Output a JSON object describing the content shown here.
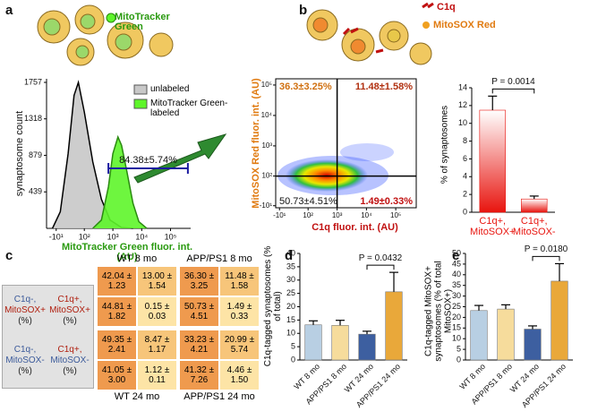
{
  "panels": [
    "a",
    "b",
    "c",
    "d",
    "e"
  ],
  "icon_labels": {
    "mitotracker": "MitoTracker Green",
    "c1q": "C1q",
    "mitosox": "MitoSOX Red"
  },
  "chart_data": [
    {
      "type": "area",
      "xlabel": "MitoTracker Green fluor. int. (AU)",
      "ylabel": "synaptosome count",
      "xscale": "biexponential",
      "series": [
        {
          "name": "unlabeled",
          "color": "#c8c8c8",
          "x": [
            -20,
            0,
            20,
            40,
            60,
            100,
            200,
            400,
            800,
            2000,
            5000
          ],
          "values": [
            0,
            200,
            900,
            1600,
            1757,
            1400,
            800,
            350,
            100,
            10,
            0
          ]
        },
        {
          "name": "MitoTracker Green-labeled",
          "color": "#5ef52a",
          "x": [
            200,
            400,
            700,
            1000,
            1500,
            2000,
            3000,
            5000,
            8000,
            15000
          ],
          "values": [
            0,
            100,
            500,
            900,
            1100,
            1000,
            700,
            300,
            80,
            0
          ]
        }
      ],
      "xlim": [
        -40,
        500000
      ],
      "xticks": [
        {
          "value": -10,
          "label": "-10¹"
        },
        {
          "value": 100,
          "label": "10²"
        },
        {
          "value": 1000,
          "label": "10³"
        },
        {
          "value": 10000,
          "label": "10⁴"
        },
        {
          "value": 100000,
          "label": "10⁵"
        }
      ],
      "ylim": [
        0,
        1800
      ],
      "yticks": [
        439,
        879,
        1318,
        1757
      ],
      "gate": [
        700,
        400000
      ],
      "annotation": "84.38±5.74%"
    },
    {
      "type": "density",
      "xlabel": "C1q fluor. int. (AU)",
      "ylabel": "MitoSOX Red fluor. int. (AU)",
      "xscale": "biexponential",
      "xlim": [
        -20,
        500000
      ],
      "ylim": [
        -15,
        160000
      ],
      "xticks": [
        {
          "value": -10,
          "label": "-10¹"
        },
        {
          "value": 100,
          "label": "10²"
        },
        {
          "value": 1000,
          "label": "10³"
        },
        {
          "value": 10000,
          "label": "10⁴"
        },
        {
          "value": 100000,
          "label": "10⁵"
        }
      ],
      "yticks": [
        {
          "value": -10,
          "label": "-10¹"
        },
        {
          "value": 100,
          "label": "10²"
        },
        {
          "value": 1000,
          "label": "10³"
        },
        {
          "value": 10000,
          "label": "10⁴"
        },
        {
          "value": 100000,
          "label": "10⁵"
        }
      ],
      "thresholds": {
        "x": 1000,
        "y": 100
      },
      "quadrant_labels": [
        "36.3±3.25%",
        "11.48±1.58%",
        "50.73±4.51%",
        "1.49±0.33%"
      ]
    },
    {
      "type": "bar",
      "ylabel": "% of synaptosomes",
      "categories": [
        "C1q+, MitoSOX+",
        "C1q+, MitoSOX-"
      ],
      "values": [
        11.48,
        1.49
      ],
      "errors": [
        1.58,
        0.33
      ],
      "color": "#e8150f",
      "ylim": [
        0,
        14
      ],
      "yticks": [
        0,
        2,
        4,
        6,
        8,
        10,
        12,
        14
      ],
      "annotation": "P = 0.0014"
    },
    {
      "type": "bar",
      "ylabel": "C1q-tagged synaptosomes (% of total)",
      "categories": [
        "WT 8 mo",
        "APP/PS1 8 mo",
        "WT 24 mo",
        "APP/PS1 24 mo"
      ],
      "values": [
        13.2,
        13.0,
        9.7,
        25.6
      ],
      "errors": [
        1.5,
        1.9,
        1.1,
        7.3
      ],
      "colors": [
        "#b8cfe3",
        "#f6dc9c",
        "#3d5fa0",
        "#e9a83a"
      ],
      "ylim": [
        0,
        40
      ],
      "yticks": [
        0,
        5,
        10,
        15,
        20,
        25,
        30,
        35,
        40
      ],
      "annotation": "P = 0.0432"
    },
    {
      "type": "bar",
      "ylabel": "C1q-tagged MitoSOX+ synaptosomes (% of total MitoSOX+)",
      "categories": [
        "WT 8 mo",
        "APP/PS1 8 mo",
        "WT 24 mo",
        "APP/PS1 24 mo"
      ],
      "values": [
        23.2,
        23.9,
        14.5,
        37.0
      ],
      "errors": [
        2.4,
        2.0,
        1.5,
        8.2
      ],
      "colors": [
        "#b8cfe3",
        "#f6dc9c",
        "#3d5fa0",
        "#e9a83a"
      ],
      "ylim": [
        0,
        50
      ],
      "yticks": [
        0,
        5,
        10,
        15,
        20,
        25,
        30,
        35,
        40,
        45,
        50
      ],
      "annotation": "P = 0.0180"
    }
  ],
  "table": {
    "row_labels": [
      [
        {
          "c1q": "C1q-,",
          "mitosox": "MitoSOX+",
          "unit": "(%)"
        },
        {
          "c1q": "C1q+,",
          "mitosox": "MitoSOX+",
          "unit": "(%)"
        }
      ],
      [
        {
          "c1q": "C1q-,",
          "mitosox": "MitoSOX-",
          "unit": "(%)"
        },
        {
          "c1q": "C1q+,",
          "mitosox": "MitoSOX-",
          "unit": "(%)"
        }
      ]
    ],
    "groups": [
      {
        "title": "WT 8 mo",
        "cells": [
          [
            "42.04 ± 1.23",
            "13.00 ± 1.54"
          ],
          [
            "44.81 ± 1.82",
            "0.15 ± 0.03"
          ]
        ]
      },
      {
        "title": "APP/PS1 8 mo",
        "cells": [
          [
            "36.30 ± 3.25",
            "11.48 ± 1.58"
          ],
          [
            "50.73 ± 4.51",
            "1.49 ± 0.33"
          ]
        ]
      },
      {
        "title": "WT 24 mo",
        "cells": [
          [
            "49.35 ± 2.41",
            "8.47 ± 1.17"
          ],
          [
            "41.05 ± 3.00",
            "1.12 ± 0.11"
          ]
        ]
      },
      {
        "title": "APP/PS1 24 mo",
        "cells": [
          [
            "33.23 ± 4.21",
            "20.99 ± 5.74"
          ],
          [
            "41.32 ± 7.26",
            "4.46 ± 1.50"
          ]
        ]
      }
    ]
  }
}
